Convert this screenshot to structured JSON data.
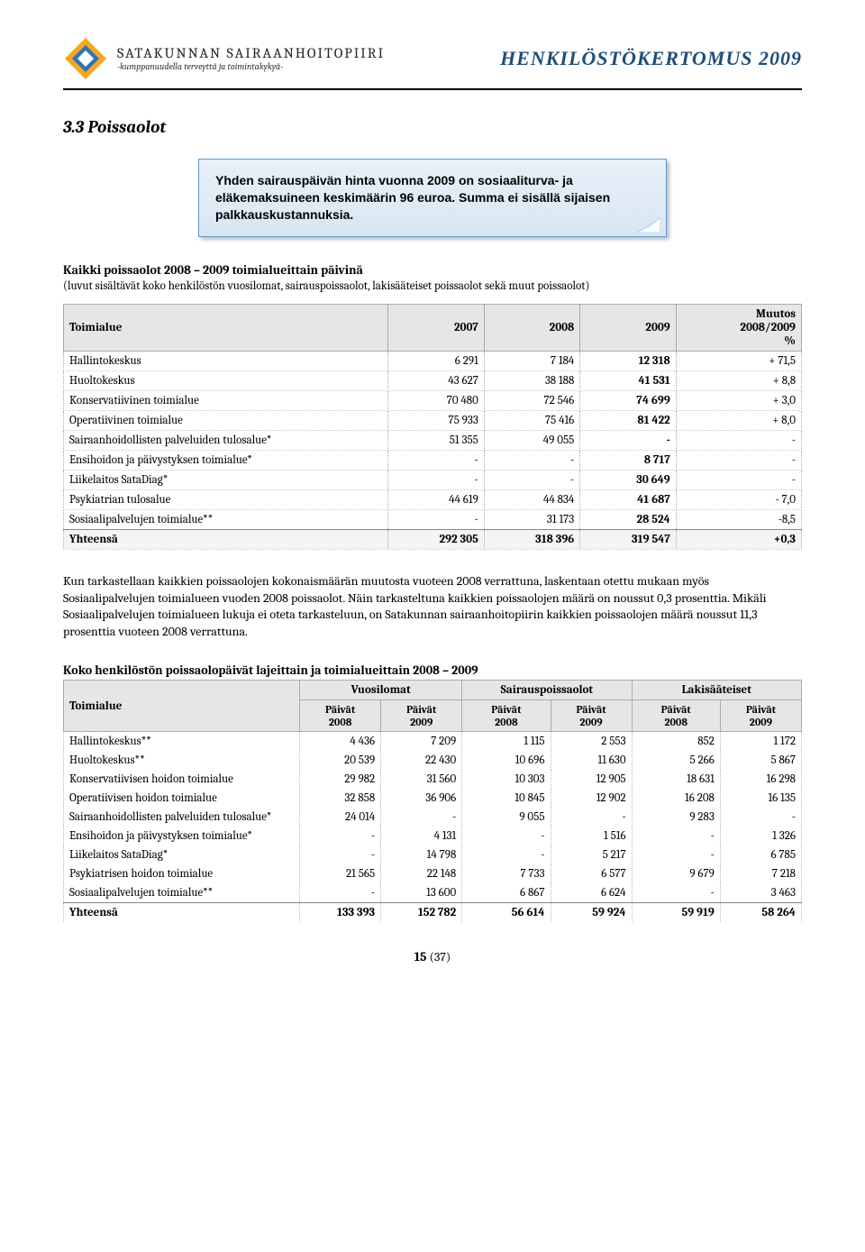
{
  "header": {
    "logo_title": "SATAKUNNAN SAIRAANHOITOPIIRI",
    "logo_sub": "-kumppanuudella terveyttä ja toimintakykyä-",
    "doc_title": "HENKILÖSTÖKERTOMUS 2009"
  },
  "section_title": "3.3 Poissaolot",
  "callout": "Yhden sairauspäivän hinta vuonna 2009 on sosiaaliturva- ja eläkemaksuineen keskimäärin 96 euroa. Summa ei sisällä sijaisen palkkauskustannuksia.",
  "table1": {
    "heading": "Kaikki poissaolot 2008 – 2009 toimialueittain päivinä",
    "note": "(luvut sisältävät koko henkilöstön vuosilomat, sairauspoissaolot, lakisääteiset poissaolot sekä muut poissaolot)",
    "columns": [
      "Toimialue",
      "2007",
      "2008",
      "2009",
      "Muutos 2008/2009 %"
    ],
    "col_widths": [
      "44%",
      "13%",
      "13%",
      "13%",
      "17%"
    ],
    "rows": [
      [
        "Hallintokeskus",
        "6 291",
        "7 184",
        "12 318",
        "+ 71,5"
      ],
      [
        "Huoltokeskus",
        "43 627",
        "38 188",
        "41 531",
        "+ 8,8"
      ],
      [
        "Konservatiivinen toimialue",
        "70 480",
        "72 546",
        "74 699",
        "+ 3,0"
      ],
      [
        "Operatiivinen toimialue",
        "75 933",
        "75 416",
        "81 422",
        "+ 8,0"
      ],
      [
        "Sairaanhoidollisten palveluiden tulosalue*",
        "51 355",
        "49 055",
        "-",
        "-"
      ],
      [
        "Ensihoidon ja päivystyksen toimialue*",
        "-",
        "-",
        "8 717",
        "-"
      ],
      [
        "Liikelaitos SataDiag*",
        "-",
        "-",
        "30 649",
        "-"
      ],
      [
        "Psykiatrian tulosalue",
        "44 619",
        "44 834",
        "41 687",
        "- 7,0"
      ],
      [
        "Sosiaalipalvelujen toimialue**",
        "-",
        "31 173",
        "28 524",
        "-8,5"
      ]
    ],
    "total": [
      "Yhteensä",
      "292 305",
      "318 396",
      "319 547",
      "+0,3"
    ],
    "bold_col": 3
  },
  "paragraph": "Kun tarkastellaan kaikkien poissaolojen  kokonaismäärän muutosta vuoteen 2008 verrattuna, laskentaan otettu mukaan  myös Sosiaalipalvelujen toimialueen  vuoden 2008 poissaolot.  Näin tarkasteltuna kaikkien poissaolojen määrä on noussut 0,3 prosenttia. Mikäli Sosiaalipalvelujen toimialueen lukuja ei oteta tarkasteluun, on Satakunnan sairaanhoitopiirin kaikkien poissaolojen määrä noussut 11,3 prosenttia vuoteen 2008 verrattuna.",
  "table2": {
    "heading": "Koko henkilöstön poissaolopäivät lajeittain  ja toimialueittain 2008 – 2009",
    "group_headers": [
      "Toimialue",
      "Vuosilomat",
      "Sairauspoissaolot",
      "Lakisääteiset"
    ],
    "sub_headers": [
      "",
      "Päivät 2008",
      "Päivät 2009",
      "Päivät 2008",
      "Päivät 2009",
      "Päivät 2008",
      "Päivät 2009"
    ],
    "col_widths": [
      "32%",
      "11%",
      "11%",
      "12%",
      "11%",
      "12%",
      "11%"
    ],
    "rows": [
      [
        "Hallintokeskus**",
        "4 436",
        "7 209",
        "1 115",
        "2 553",
        "852",
        "1 172"
      ],
      [
        "Huoltokeskus**",
        "20 539",
        "22 430",
        "10 696",
        "11 630",
        "5 266",
        "5 867"
      ],
      [
        "Konservatiivisen hoidon toimialue",
        "29 982",
        "31 560",
        "10 303",
        "12 905",
        "18 631",
        "16 298"
      ],
      [
        "Operatiivisen hoidon toimialue",
        "32 858",
        "36 906",
        "10 845",
        "12 902",
        "16 208",
        "16 135"
      ],
      [
        "Sairaanhoidollisten palveluiden tulosalue*",
        "24 014",
        "-",
        "9 055",
        "-",
        "9 283",
        "-"
      ],
      [
        "Ensihoidon ja päivystyksen toimialue*",
        "-",
        "4 131",
        "-",
        "1 516",
        "-",
        "1 326"
      ],
      [
        "Liikelaitos SataDiag*",
        "-",
        "14 798",
        "-",
        "5 217",
        "-",
        "6 785"
      ],
      [
        "Psykiatrisen hoidon toimialue",
        "21 565",
        "22 148",
        "7 733",
        "6 577",
        "9 679",
        "7 218"
      ],
      [
        "Sosiaalipalvelujen toimialue**",
        "-",
        "13 600",
        "6 867",
        "6 624",
        "-",
        "3 463"
      ]
    ],
    "total": [
      "Yhteensä",
      "133 393",
      "152 782",
      "56 614",
      "59 924",
      "59 919",
      "58 264"
    ]
  },
  "page": {
    "num": "15",
    "of": "(37)"
  }
}
